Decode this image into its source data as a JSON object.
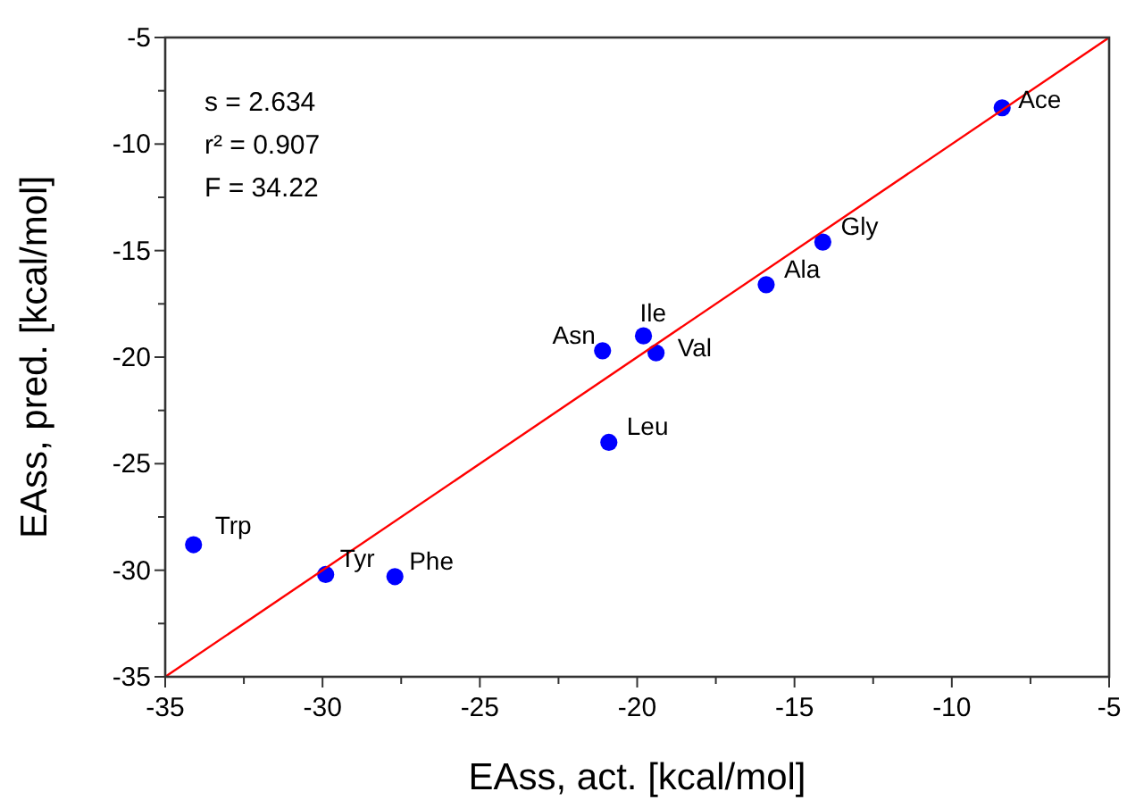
{
  "chart_data": {
    "type": "scatter",
    "xlabel": "EAss, act. [kcal/mol]",
    "ylabel": "EAss, pred. [kcal/mol]",
    "xlim": [
      -35,
      -5
    ],
    "ylim": [
      -35,
      -5
    ],
    "xticks": [
      -35,
      {
        "value": -32.5,
        "label": null
      },
      -30,
      {
        "value": -27.5,
        "label": null
      },
      -25,
      {
        "value": -22.5,
        "label": null
      },
      -20,
      {
        "value": -17.5,
        "label": null
      },
      -15,
      {
        "value": -12.5,
        "label": null
      },
      -10,
      {
        "value": -7.5,
        "label": null
      },
      -5
    ],
    "yticks": [
      -35,
      {
        "value": -32.5,
        "label": null
      },
      -30,
      {
        "value": -27.5,
        "label": null
      },
      -25,
      {
        "value": -22.5,
        "label": null
      },
      -20,
      {
        "value": -17.5,
        "label": null
      },
      -15,
      {
        "value": -12.5,
        "label": null
      },
      -10,
      {
        "value": -7.5,
        "label": null
      },
      -5
    ],
    "grid": false,
    "marker": "circle",
    "series": [
      {
        "color": "#0000ff",
        "x": [
          -8.4,
          -14.1,
          -15.9,
          -19.8,
          -19.4,
          -21.1,
          -20.9,
          -34.1,
          -29.9,
          -27.7
        ],
        "values": [
          -8.3,
          -14.6,
          -16.6,
          -19.0,
          -19.8,
          -19.7,
          -24.0,
          -28.8,
          -30.2,
          -30.3
        ]
      },
      {
        "type": "line",
        "color": "#ff0000",
        "marker": "none",
        "x": [
          -35,
          -5
        ],
        "values": [
          -35,
          -5
        ]
      }
    ],
    "annotations": [
      "s = 2.634",
      "r² = 0.907",
      "F = 34.22",
      {
        "text": "Ace",
        "x": -8.4,
        "y": -8.3
      },
      {
        "text": "Gly",
        "x": -14.1,
        "y": -14.6
      },
      {
        "text": "Ala",
        "x": -15.9,
        "y": -16.6
      },
      {
        "text": "Ile",
        "x": -19.8,
        "y": -19.0
      },
      {
        "text": "Val",
        "x": -19.4,
        "y": -19.8
      },
      {
        "text": "Asn",
        "x": -21.1,
        "y": -19.7
      },
      {
        "text": "Leu",
        "x": -20.9,
        "y": -24.0
      },
      {
        "text": "Trp",
        "x": -34.1,
        "y": -28.8
      },
      {
        "text": "Tyr",
        "x": -29.9,
        "y": -30.2
      },
      {
        "text": "Phe",
        "x": -27.7,
        "y": -30.3
      }
    ]
  }
}
